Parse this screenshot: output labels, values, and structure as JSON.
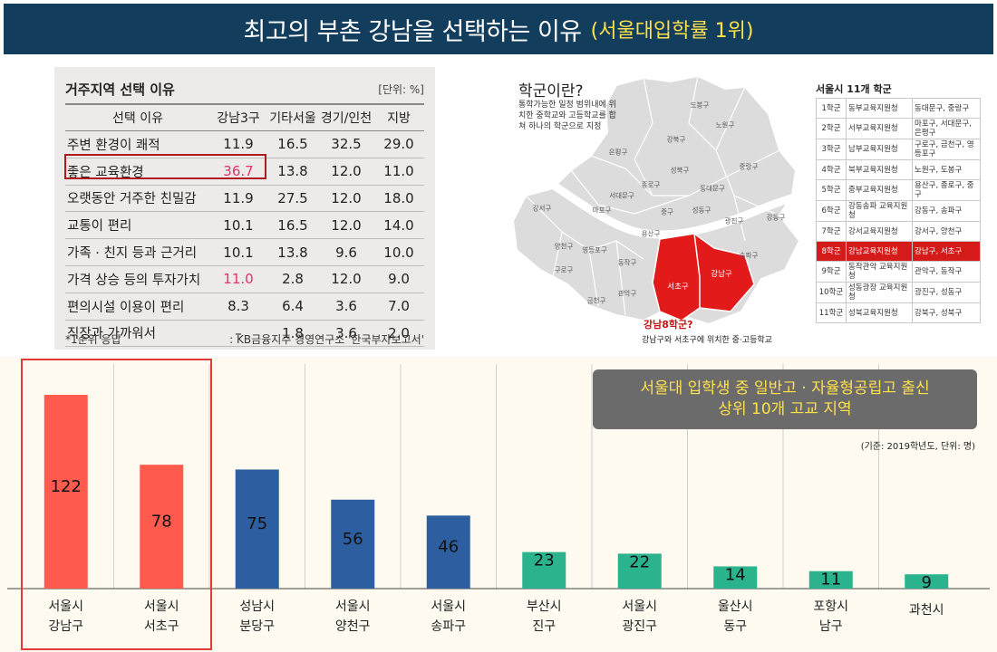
{
  "banner": {
    "title": "최고의 부촌 강남을 선택하는 이유",
    "subtitle": "(서울대입학률 1위)"
  },
  "residence_table": {
    "title": "거주지역 선택 이유",
    "unit": "[단위: %]",
    "headers": [
      "선택 이유",
      "강남3구",
      "기타서울",
      "경기/인천",
      "지방"
    ],
    "rows": [
      [
        "주변 환경이 쾌적",
        "11.9",
        "16.5",
        "32.5",
        "29.0"
      ],
      [
        "좋은 교육환경",
        "36.7",
        "13.8",
        "12.0",
        "11.0"
      ],
      [
        "오랫동안 거주한 친밀감",
        "11.9",
        "27.5",
        "12.0",
        "18.0"
      ],
      [
        "교통이 편리",
        "10.1",
        "16.5",
        "12.0",
        "14.0"
      ],
      [
        "가족 · 친지 등과 근거리",
        "10.1",
        "13.8",
        "9.6",
        "10.0"
      ],
      [
        "가격 상승 등의 투자가치",
        "11.0",
        "2.8",
        "12.0",
        "9.0"
      ],
      [
        "편의시설 이용이 편리",
        "8.3",
        "6.4",
        "3.6",
        "7.0"
      ],
      [
        "직장과 가까워서",
        "–",
        "1.8",
        "3.6",
        "2.0"
      ]
    ],
    "footnote": "*1순위 응답",
    "source": ": KB금융지주 경영연구소 '한국부자보고서'"
  },
  "map": {
    "title": "학군이란?",
    "description": "통학가능한 일정 범위내에 위치한 중학교와 고등학교를 합쳐 하나의 학군으로 지정",
    "districts": [
      "도봉구",
      "노원구",
      "강북구",
      "은평구",
      "성북구",
      "중랑구",
      "종로구",
      "동대문구",
      "서대문구",
      "마포구",
      "중구",
      "성동구",
      "광진구",
      "강동구",
      "강서구",
      "용산구",
      "양천구",
      "영등포구",
      "동작구",
      "구로구",
      "관악구",
      "금천구",
      "서초구",
      "강남구",
      "송파구"
    ],
    "caption_title": "강남8학군?",
    "caption": "강남구와 서초구에 위치한 중·고등학교"
  },
  "school_districts": {
    "title": "서울시 11개 학군",
    "rows": [
      [
        "1학군",
        "동부교육지원청",
        "동대문구, 중랑구"
      ],
      [
        "2학군",
        "서부교육지원청",
        "마포구, 서대문구, 은평구"
      ],
      [
        "3학군",
        "남부교육지원청",
        "구로구, 금천구, 영등포구"
      ],
      [
        "4학군",
        "북부교육지원청",
        "노원구, 도봉구"
      ],
      [
        "5학군",
        "중부교육지원청",
        "용산구, 종로구, 중구"
      ],
      [
        "6학군",
        "강동송파 교육지원청",
        "강동구, 송파구"
      ],
      [
        "7학군",
        "강서교육지원청",
        "강서구, 양천구"
      ],
      [
        "8학군",
        "강남교육지원청",
        "강남구, 서초구"
      ],
      [
        "9학군",
        "동작관악 교육지원청",
        "관악구, 동작구"
      ],
      [
        "10학군",
        "성동광장 교육지원청",
        "광진구, 성동구"
      ],
      [
        "11학군",
        "성북교육지원청",
        "강북구, 성북구"
      ]
    ]
  },
  "info_box": {
    "line1": "서울대 입학생 중 일반고 · 자율형공립고 출신",
    "line2": "상위 10개 고교 지역"
  },
  "basis_note": "(기준: 2019학년도, 단위: 명)",
  "chart_data": {
    "type": "bar",
    "title": "",
    "categories": [
      [
        "서울시",
        "강남구"
      ],
      [
        "서울시",
        "서초구"
      ],
      [
        "성남시",
        "분당구"
      ],
      [
        "서울시",
        "양천구"
      ],
      [
        "서울시",
        "송파구"
      ],
      [
        "부산시",
        "진구"
      ],
      [
        "서울시",
        "광진구"
      ],
      [
        "울산시",
        "동구"
      ],
      [
        "포항시",
        "남구"
      ],
      [
        "과천시"
      ]
    ],
    "values": [
      122,
      78,
      75,
      56,
      46,
      23,
      22,
      14,
      11,
      9
    ],
    "colors": [
      "#ff5a4e",
      "#ff5a4e",
      "#2d5fa0",
      "#2d5fa0",
      "#2d5fa0",
      "#2bb38e",
      "#2bb38e",
      "#2bb38e",
      "#2bb38e",
      "#2bb38e"
    ],
    "ylim": [
      0,
      130
    ],
    "grid": "vertical separators",
    "legend": "none",
    "highlighted_categories": [
      0,
      1
    ]
  }
}
